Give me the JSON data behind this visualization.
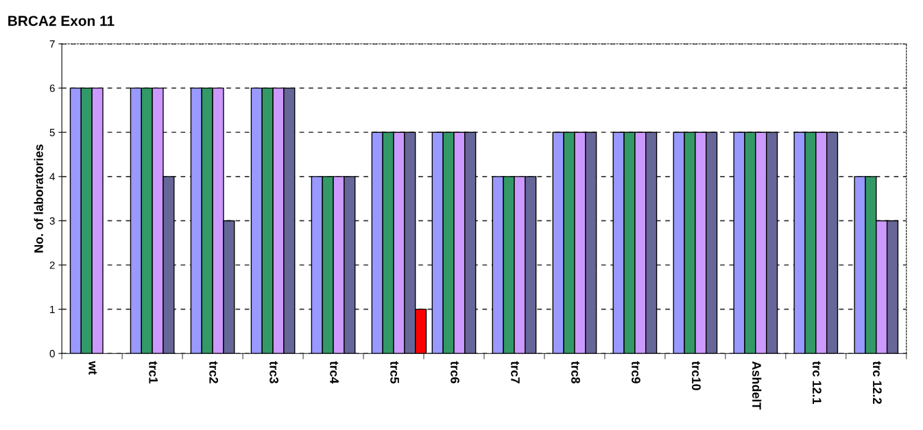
{
  "chart_data": {
    "type": "bar",
    "title": "BRCA2 Exon 11",
    "ylabel": "No. of laboratories",
    "categories": [
      "wt",
      "trc1",
      "trc2",
      "trc3",
      "trc4",
      "trc5",
      "trc6",
      "trc7",
      "trc8",
      "trc9",
      "trc10",
      "AshdelT",
      "trc 12.1",
      "trc 12.2"
    ],
    "series": [
      {
        "color": "#9999ff",
        "values": [
          6,
          6,
          6,
          6,
          4,
          5,
          5,
          4,
          5,
          5,
          5,
          5,
          5,
          4
        ]
      },
      {
        "color": "#339966",
        "values": [
          6,
          6,
          6,
          6,
          4,
          5,
          5,
          4,
          5,
          5,
          5,
          5,
          5,
          4
        ]
      },
      {
        "color": "#cc99ff",
        "values": [
          6,
          6,
          6,
          6,
          4,
          5,
          5,
          4,
          5,
          5,
          5,
          5,
          5,
          3
        ]
      },
      {
        "color": "#666699",
        "values": [
          null,
          4,
          3,
          6,
          4,
          5,
          5,
          4,
          5,
          5,
          5,
          5,
          5,
          3
        ]
      },
      {
        "color": "#ff0000",
        "values": [
          null,
          null,
          null,
          null,
          null,
          1,
          null,
          null,
          null,
          null,
          null,
          null,
          null,
          null
        ]
      }
    ],
    "ylim": [
      0,
      7
    ],
    "yticks": [
      0,
      1,
      2,
      3,
      4,
      5,
      6,
      7
    ],
    "grid": "y",
    "legend": false
  }
}
